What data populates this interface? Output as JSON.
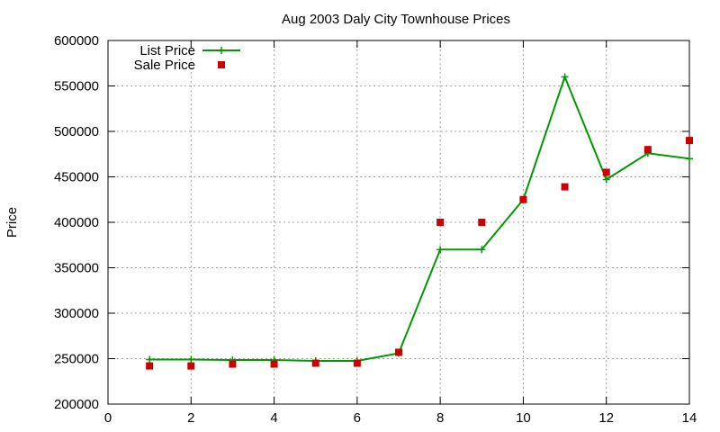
{
  "chart_data": {
    "type": "line",
    "title": "Aug 2003 Daly City Townhouse Prices",
    "xlabel": "",
    "ylabel": "Price",
    "xlim": [
      0,
      14
    ],
    "ylim": [
      200000,
      600000
    ],
    "x_ticks": [
      "0",
      "2",
      "4",
      "6",
      "8",
      "10",
      "12",
      "14"
    ],
    "y_ticks": [
      "200000",
      "250000",
      "300000",
      "350000",
      "400000",
      "450000",
      "500000",
      "550000",
      "600000"
    ],
    "grid": true,
    "legend_position": "top-left",
    "series": [
      {
        "name": "List Price",
        "style": "line+cross",
        "color": "#009900",
        "x": [
          1,
          2,
          3,
          4,
          5,
          6,
          7,
          8,
          9,
          10,
          11,
          12,
          13,
          14
        ],
        "values": [
          249000,
          249000,
          248500,
          248500,
          247500,
          247500,
          256000,
          370000,
          370000,
          425000,
          560000,
          447000,
          476000,
          470000
        ]
      },
      {
        "name": "Sale Price",
        "style": "square-points",
        "color": "#cc0000",
        "x": [
          1,
          2,
          3,
          4,
          5,
          6,
          7,
          8,
          9,
          10,
          11,
          12,
          13,
          14
        ],
        "values": [
          242000,
          242000,
          244000,
          244000,
          245000,
          245000,
          257000,
          400000,
          400000,
          425000,
          439000,
          455000,
          480000,
          490000
        ]
      }
    ]
  }
}
